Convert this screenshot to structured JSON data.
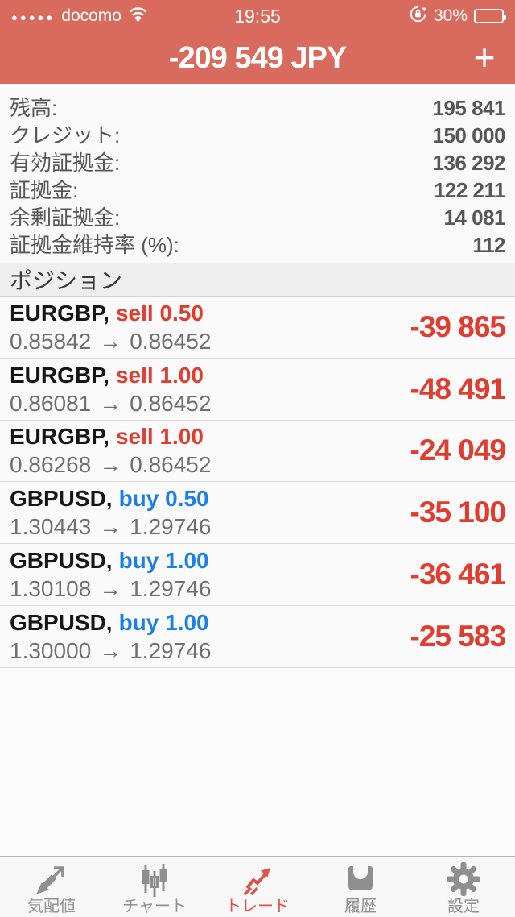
{
  "status_bar": {
    "signal_dots": "●●●●●",
    "carrier": "docomo",
    "time": "19:55",
    "battery_percent": "30%",
    "battery_level": 30,
    "icons": [
      "wifi-icon",
      "orientation-lock-icon",
      "battery-icon"
    ]
  },
  "header": {
    "title": "-209 549 JPY",
    "add_button_label": "+"
  },
  "account_summary": {
    "rows": [
      {
        "label": "残高:",
        "value": "195 841"
      },
      {
        "label": "クレジット:",
        "value": "150 000"
      },
      {
        "label": "有効証拠金:",
        "value": "136 292"
      },
      {
        "label": "証拠金:",
        "value": "122 211"
      },
      {
        "label": "余剰証拠金:",
        "value": "14 081"
      },
      {
        "label": "証拠金維持率 (%):",
        "value": "112"
      }
    ]
  },
  "positions": {
    "section_title": "ポジション",
    "items": [
      {
        "symbol": "EURGBP,",
        "side": "sell 0.50",
        "side_type": "sell",
        "open_price": "0.85842",
        "arrow": "→",
        "current_price": "0.86452",
        "profit_loss": "-39 865"
      },
      {
        "symbol": "EURGBP,",
        "side": "sell 1.00",
        "side_type": "sell",
        "open_price": "0.86081",
        "arrow": "→",
        "current_price": "0.86452",
        "profit_loss": "-48 491"
      },
      {
        "symbol": "EURGBP,",
        "side": "sell 1.00",
        "side_type": "sell",
        "open_price": "0.86268",
        "arrow": "→",
        "current_price": "0.86452",
        "profit_loss": "-24 049"
      },
      {
        "symbol": "GBPUSD,",
        "side": "buy 0.50",
        "side_type": "buy",
        "open_price": "1.30443",
        "arrow": "→",
        "current_price": "1.29746",
        "profit_loss": "-35 100"
      },
      {
        "symbol": "GBPUSD,",
        "side": "buy 1.00",
        "side_type": "buy",
        "open_price": "1.30108",
        "arrow": "→",
        "current_price": "1.29746",
        "profit_loss": "-36 461"
      },
      {
        "symbol": "GBPUSD,",
        "side": "buy 1.00",
        "side_type": "buy",
        "open_price": "1.30000",
        "arrow": "→",
        "current_price": "1.29746",
        "profit_loss": "-25 583"
      }
    ]
  },
  "tab_bar": {
    "tabs": [
      {
        "label": "気配値",
        "icon": "quotes-arrows-icon",
        "active": false
      },
      {
        "label": "チャート",
        "icon": "candlestick-chart-icon",
        "active": false
      },
      {
        "label": "トレード",
        "icon": "trade-trend-icon",
        "active": true
      },
      {
        "label": "履歴",
        "icon": "history-inbox-icon",
        "active": false
      },
      {
        "label": "設定",
        "icon": "settings-gear-icon",
        "active": false
      }
    ]
  },
  "colors": {
    "header_red": "#d96a5e",
    "loss_red": "#df3d30",
    "sell_red": "#df3d30",
    "buy_blue": "#1a80e8",
    "active_tab_red": "#dc5448",
    "price_gray": "#6f6f6f",
    "battery_yellow": "#f7c434"
  }
}
